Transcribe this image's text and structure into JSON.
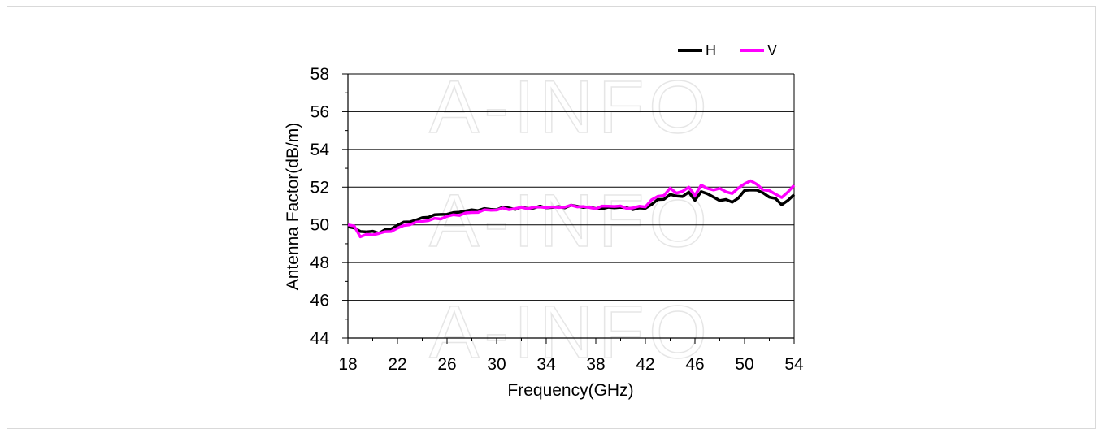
{
  "chart_data": {
    "type": "line",
    "xlabel": "Frequency(GHz)",
    "ylabel": "Antenna Factor(dB/m)",
    "xlim": [
      18,
      54
    ],
    "ylim": [
      44,
      58
    ],
    "x_ticks": [
      "18",
      "22",
      "26",
      "30",
      "34",
      "38",
      "42",
      "46",
      "50",
      "54"
    ],
    "y_ticks": [
      "44",
      "46",
      "48",
      "50",
      "52",
      "54",
      "56",
      "58"
    ],
    "grid": "horizontal",
    "legend_position": "top-right",
    "watermark": "A-INFO",
    "series": [
      {
        "name": "H",
        "color": "#000000",
        "x": [
          18,
          18.5,
          19,
          19.5,
          20,
          20.5,
          21,
          21.5,
          22,
          22.5,
          23,
          23.5,
          24,
          24.5,
          25,
          25.5,
          26,
          26.5,
          27,
          27.5,
          28,
          28.5,
          29,
          29.5,
          30,
          30.5,
          31,
          31.5,
          32,
          32.5,
          33,
          33.5,
          34,
          34.5,
          35,
          35.5,
          36,
          36.5,
          37,
          37.5,
          38,
          38.5,
          39,
          39.5,
          40,
          40.5,
          41,
          41.5,
          42,
          42.5,
          43,
          43.5,
          44,
          44.5,
          45,
          45.5,
          46,
          46.5,
          47,
          47.5,
          48,
          48.5,
          49,
          49.5,
          50,
          50.5,
          51,
          51.5,
          52,
          52.5,
          53,
          53.5,
          54
        ],
        "y": [
          49.9,
          49.8,
          49.7,
          49.6,
          49.65,
          49.6,
          49.7,
          49.8,
          50.0,
          50.1,
          50.2,
          50.25,
          50.35,
          50.45,
          50.5,
          50.55,
          50.6,
          50.6,
          50.7,
          50.75,
          50.75,
          50.8,
          50.85,
          50.8,
          50.85,
          50.9,
          50.9,
          50.85,
          50.9,
          50.9,
          50.9,
          50.95,
          50.95,
          50.9,
          50.95,
          50.95,
          51.0,
          51.0,
          50.95,
          50.9,
          50.9,
          50.85,
          50.9,
          50.95,
          50.9,
          50.9,
          50.85,
          50.85,
          50.9,
          51.1,
          51.3,
          51.4,
          51.6,
          51.5,
          51.55,
          51.7,
          51.3,
          51.8,
          51.6,
          51.5,
          51.3,
          51.3,
          51.25,
          51.4,
          51.8,
          51.9,
          51.8,
          51.7,
          51.5,
          51.35,
          51.1,
          51.3,
          51.6
        ]
      },
      {
        "name": "V",
        "color": "#ff00ff",
        "x": [
          18,
          18.5,
          19,
          19.5,
          20,
          20.5,
          21,
          21.5,
          22,
          22.5,
          23,
          23.5,
          24,
          24.5,
          25,
          25.5,
          26,
          26.5,
          27,
          27.5,
          28,
          28.5,
          29,
          29.5,
          30,
          30.5,
          31,
          31.5,
          32,
          32.5,
          33,
          33.5,
          34,
          34.5,
          35,
          35.5,
          36,
          36.5,
          37,
          37.5,
          38,
          38.5,
          39,
          39.5,
          40,
          40.5,
          41,
          41.5,
          42,
          42.5,
          43,
          43.5,
          44,
          44.5,
          45,
          45.5,
          46,
          46.5,
          47,
          47.5,
          48,
          48.5,
          49,
          49.5,
          50,
          50.5,
          51,
          51.5,
          52,
          52.5,
          53,
          53.5,
          54
        ],
        "y": [
          50.0,
          49.95,
          49.4,
          49.45,
          49.5,
          49.55,
          49.6,
          49.7,
          49.8,
          49.95,
          50.05,
          50.1,
          50.2,
          50.25,
          50.3,
          50.35,
          50.45,
          50.5,
          50.55,
          50.6,
          50.65,
          50.7,
          50.75,
          50.8,
          50.8,
          50.85,
          50.85,
          50.85,
          50.9,
          50.9,
          50.9,
          50.95,
          50.95,
          50.9,
          50.95,
          50.95,
          51.0,
          51.0,
          50.95,
          50.9,
          50.9,
          50.95,
          51.0,
          51.0,
          50.95,
          50.9,
          50.9,
          50.95,
          51.0,
          51.3,
          51.5,
          51.6,
          51.9,
          51.7,
          51.8,
          51.95,
          51.6,
          52.1,
          51.9,
          51.9,
          51.9,
          51.75,
          51.7,
          51.9,
          52.2,
          52.35,
          52.1,
          51.9,
          51.8,
          51.6,
          51.5,
          51.7,
          52.1
        ]
      }
    ]
  }
}
